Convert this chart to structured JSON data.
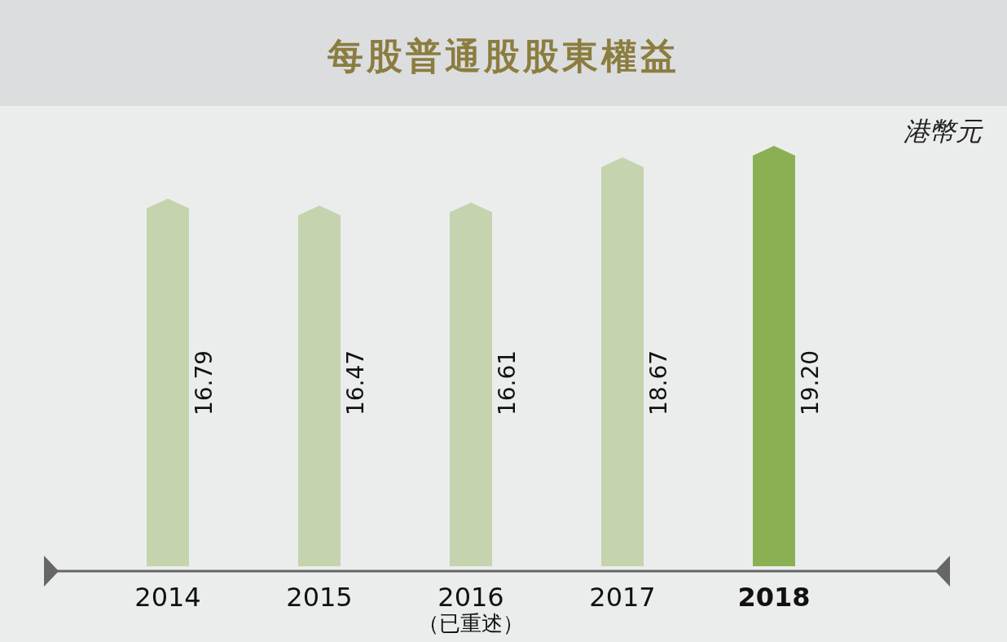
{
  "chart_data": {
    "type": "bar",
    "title": "每股普通股股東權益",
    "ylabel": "港幣元",
    "categories": [
      "2014",
      "2015",
      "2016\n（已重述）",
      "2017",
      "2018"
    ],
    "values": [
      16.79,
      16.47,
      16.61,
      18.67,
      19.2
    ],
    "colors": [
      "#c5d3ae",
      "#c5d3ae",
      "#c5d3ae",
      "#c5d3ae",
      "#8bb053"
    ],
    "value_labels": [
      "16.79",
      "16.47",
      "16.61",
      "18.67",
      "19.20"
    ]
  }
}
